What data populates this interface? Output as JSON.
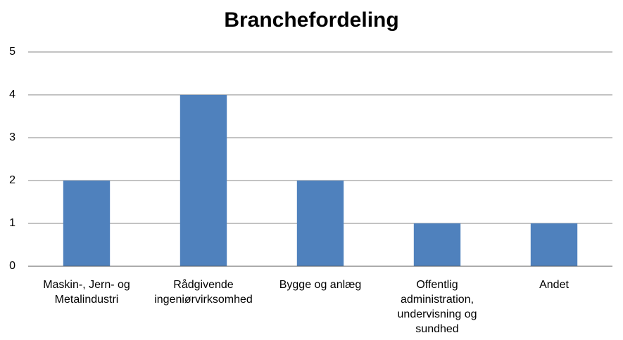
{
  "chart_data": {
    "type": "bar",
    "title": "Branchefordeling",
    "categories": [
      "Maskin-, Jern- og Metalindustri",
      "Rådgivende ingeniørvirksomhed",
      "Bygge og anlæg",
      "Offentlig administration, undervisning og sundhed",
      "Andet"
    ],
    "values": [
      2,
      4,
      2,
      1,
      1
    ],
    "color": "#4f81bd",
    "ylim": [
      0,
      5
    ],
    "yticks": [
      0,
      1,
      2,
      3,
      4,
      5
    ],
    "grid": true
  }
}
